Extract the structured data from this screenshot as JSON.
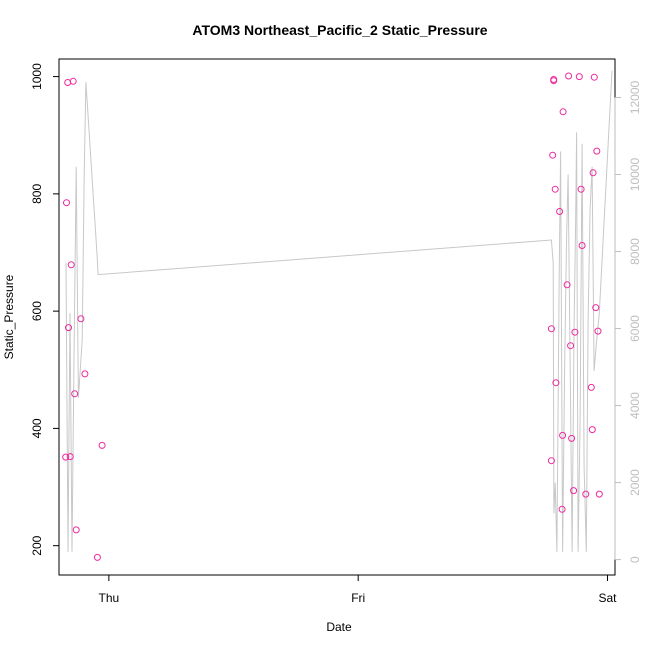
{
  "chart_data": {
    "type": "scatter",
    "title": "ATOM3 Northeast_Pacific_2 Static_Pressure",
    "xlabel": "Date",
    "ylabel": "Static_Pressure",
    "x_ticks": [
      "Thu",
      "Fri",
      "Sat"
    ],
    "x_tick_days": [
      0,
      1,
      2
    ],
    "xlim": [
      -0.2,
      2.03
    ],
    "ylim": [
      150,
      1030
    ],
    "y_ticks": [
      200,
      400,
      600,
      800,
      1000
    ],
    "ylim_right": [
      -400,
      13000
    ],
    "y_ticks_right": [
      0,
      2000,
      4000,
      6000,
      8000,
      10000,
      12000
    ],
    "grid": false,
    "legend": "none",
    "colors": {
      "points": "#ee2a9f",
      "line": "#c8c8c8",
      "right_axis": "#bebebe",
      "axis": "#000000"
    },
    "series": [
      {
        "kind": "points",
        "axis": "left",
        "x": [
          -0.173,
          -0.17,
          -0.165,
          -0.162,
          -0.155,
          -0.151,
          -0.143,
          -0.137,
          -0.131,
          -0.112,
          -0.096,
          -0.046,
          1.775,
          1.775,
          1.78,
          1.784,
          1.784,
          1.79,
          1.793,
          1.808,
          1.818,
          1.82,
          1.822,
          1.838,
          1.844,
          1.852,
          1.856,
          1.864,
          1.869,
          1.887,
          1.894,
          1.898,
          1.913,
          1.935,
          1.942,
          1.947,
          1.957,
          1.967
        ],
        "y": [
          351,
          785,
          990,
          572,
          352,
          679,
          992,
          459,
          227,
          587,
          493,
          180,
          345,
          570,
          866,
          993,
          995,
          808,
          478,
          770,
          262,
          388,
          940,
          645,
          1001,
          541,
          383,
          294,
          564,
          1000,
          808,
          712,
          288,
          470,
          836,
          999,
          873,
          288
        ]
      },
      {
        "kind": "points",
        "axis": "left",
        "x": [
          -0.027,
          1.939,
          1.953,
          1.962
        ],
        "y": [
          371,
          398,
          606,
          566
        ]
      },
      {
        "kind": "line",
        "axis": "right",
        "x": [
          -0.172,
          -0.164,
          -0.156,
          -0.148,
          -0.14,
          -0.131,
          -0.122,
          -0.115,
          -0.107,
          -0.099,
          -0.092,
          -0.047,
          -0.043,
          1.775,
          1.782,
          1.785,
          1.79,
          1.797,
          1.806,
          1.812,
          1.82,
          1.828,
          1.836,
          1.842,
          1.85,
          1.858,
          1.866,
          1.872,
          1.876,
          1.882,
          1.89,
          1.898,
          1.906,
          1.915,
          1.922,
          1.93,
          1.938,
          1.946,
          1.955,
          1.967,
          2.018
        ],
        "y": [
          7700,
          200,
          6400,
          200,
          5200,
          10200,
          4200,
          4900,
          5700,
          10000,
          12400,
          7900,
          7400,
          8300,
          7700,
          1200,
          2000,
          200,
          7400,
          10600,
          200,
          4900,
          8400,
          10000,
          5200,
          200,
          6100,
          8700,
          11100,
          200,
          3600,
          10800,
          2400,
          200,
          6200,
          9100,
          10200,
          4900,
          5600,
          6400,
          12700
        ]
      }
    ]
  }
}
